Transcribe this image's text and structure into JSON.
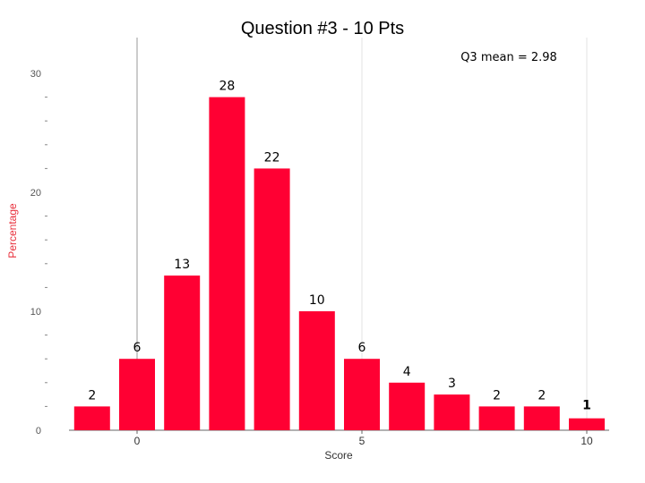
{
  "chart_data": {
    "type": "bar",
    "title": "Question #3 - 10 Pts",
    "annotation": "Q3 mean = 2.98",
    "xlabel": "Score",
    "ylabel": "Percentage",
    "x": [
      -1,
      0,
      1,
      2,
      3,
      4,
      5,
      6,
      7,
      8,
      9,
      10
    ],
    "values": [
      2,
      6,
      13,
      28,
      22,
      10,
      6,
      4,
      3,
      2,
      2,
      1
    ],
    "data_labels": [
      "2",
      "6",
      "13",
      "28",
      "22",
      "10",
      "6",
      "4",
      "3",
      "2",
      "2",
      "1"
    ],
    "xlim": [
      -1.5,
      10.5
    ],
    "ylim": [
      0,
      32
    ],
    "x_ticks": [
      0,
      5,
      10
    ],
    "x_tick_labels": [
      "0",
      "5",
      "10"
    ],
    "y_ticks": [
      0,
      10,
      20,
      30
    ],
    "y_tick_labels": [
      "0",
      "10",
      "20",
      "30"
    ],
    "y_minor_step": 2,
    "vertical_gridlines_at": [
      0,
      5,
      10
    ],
    "bar_color": "#ff0033",
    "ylabel_color": "#e8303c",
    "axis_color": "#666666"
  }
}
